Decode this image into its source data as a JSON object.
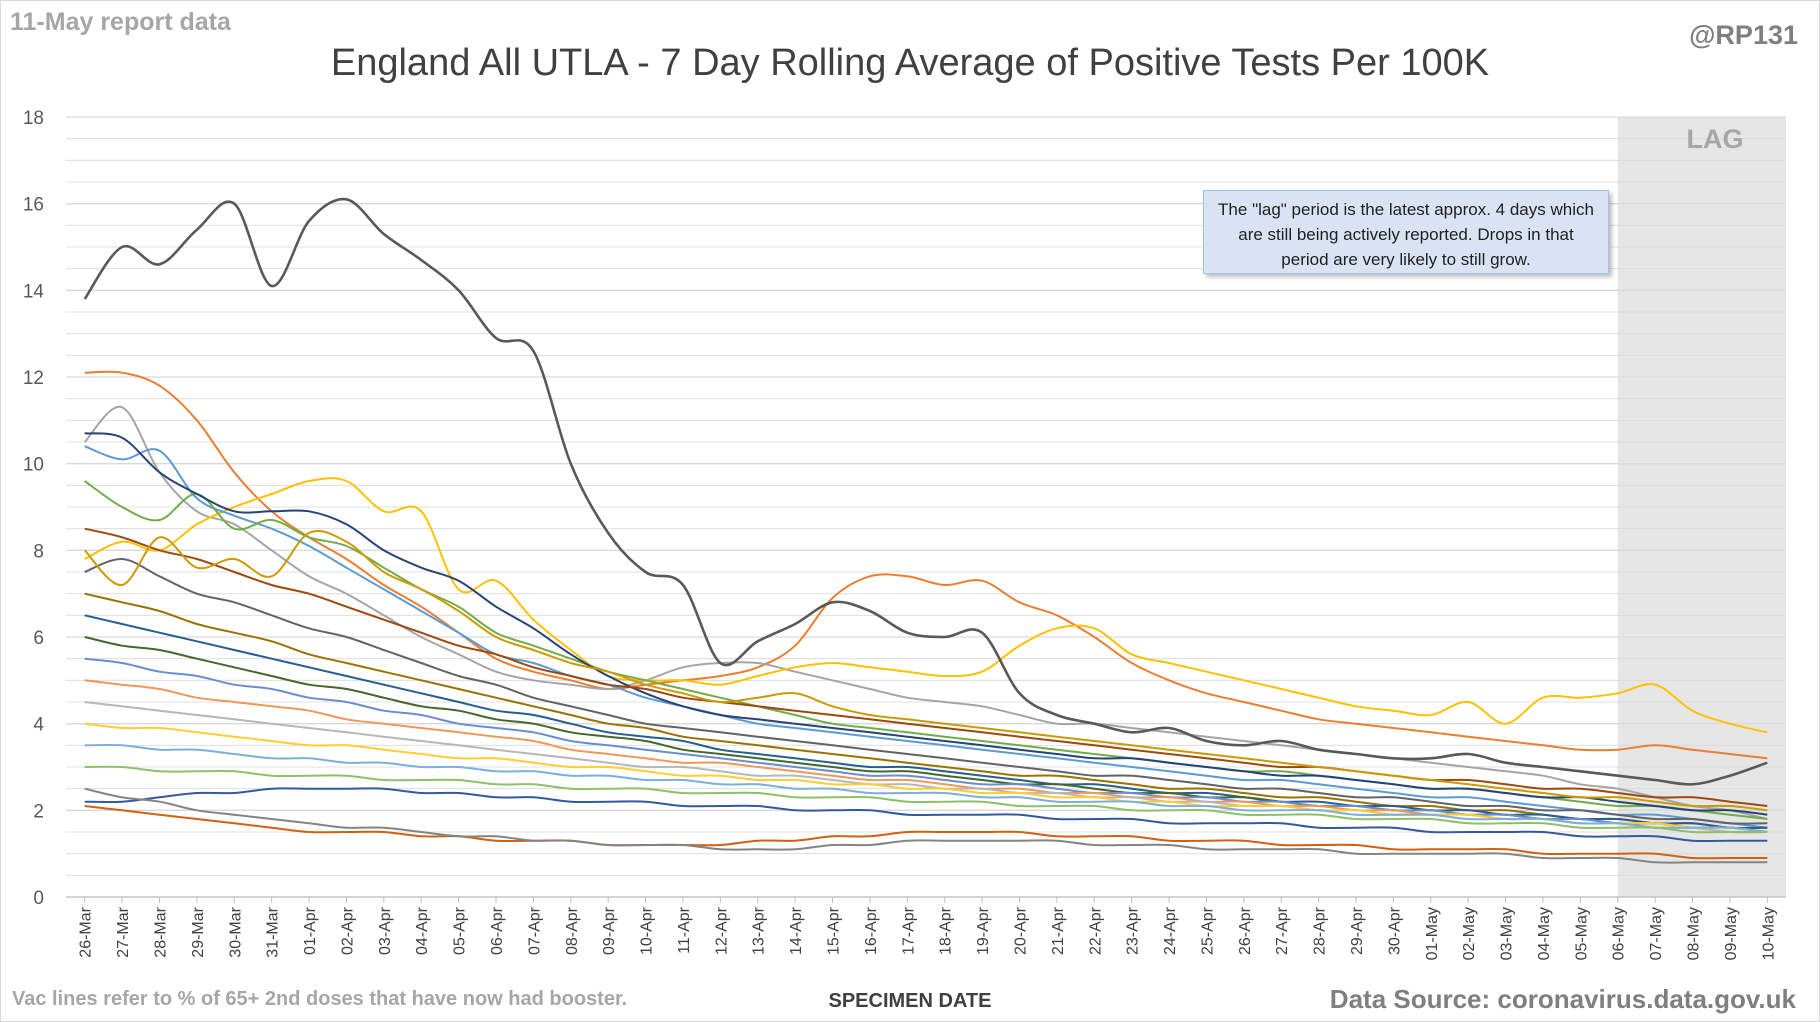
{
  "header": {
    "report_date": "11-May report data",
    "handle": "@RP131"
  },
  "footer": {
    "footnote": "Vac lines refer to % of 65+ 2nd doses that have now had booster.",
    "source": "Data Source: coronavirus.data.gov.uk"
  },
  "note": "The \"lag\" period is the latest approx. 4 days which are still being actively reported. Drops in that period are very likely to still grow.",
  "lag_label": "LAG",
  "colors": {
    "grid": "#d9d9d9",
    "lag_shade": "#e7e6e6",
    "palette": [
      "#4472c4",
      "#ed7d31",
      "#a5a5a5",
      "#ffc000",
      "#5b9bd5",
      "#70ad47",
      "#264478",
      "#9e480e",
      "#636363",
      "#997300",
      "#255e91",
      "#43682b",
      "#698ed0",
      "#f1975a",
      "#b7b7b7",
      "#ffcd33",
      "#7cafdd",
      "#8cc168",
      "#335aa1",
      "#d26012",
      "#848484",
      "#cc9a00"
    ]
  },
  "chart_data": {
    "type": "line",
    "title": "England All UTLA - 7 Day Rolling Average of Positive Tests Per 100K",
    "xlabel": "SPECIMEN DATE",
    "ylabel": "",
    "ylim": [
      0,
      18
    ],
    "yticks": [
      0,
      2,
      4,
      6,
      8,
      10,
      12,
      14,
      16,
      18
    ],
    "grid": true,
    "lag_period": [
      "07-May",
      "10-May"
    ],
    "categories": [
      "26-Mar",
      "27-Mar",
      "28-Mar",
      "29-Mar",
      "30-Mar",
      "31-Mar",
      "01-Apr",
      "02-Apr",
      "03-Apr",
      "04-Apr",
      "05-Apr",
      "06-Apr",
      "07-Apr",
      "08-Apr",
      "09-Apr",
      "10-Apr",
      "11-Apr",
      "12-Apr",
      "13-Apr",
      "14-Apr",
      "15-Apr",
      "16-Apr",
      "17-Apr",
      "18-Apr",
      "19-Apr",
      "20-Apr",
      "21-Apr",
      "22-Apr",
      "23-Apr",
      "24-Apr",
      "25-Apr",
      "26-Apr",
      "27-Apr",
      "28-Apr",
      "29-Apr",
      "30-Apr",
      "01-May",
      "02-May",
      "03-May",
      "04-May",
      "05-May",
      "06-May",
      "07-May",
      "08-May",
      "09-May",
      "10-May"
    ],
    "series": [
      {
        "values": [
          13.8,
          15.0,
          14.6,
          15.4,
          16.0,
          14.1,
          15.6,
          16.1,
          15.3,
          14.7,
          14.0,
          12.9,
          12.6,
          10.0,
          8.4,
          7.5,
          7.2,
          5.4,
          5.9,
          6.3,
          6.8,
          6.6,
          6.1,
          6.0,
          6.1,
          4.7,
          4.2,
          4.0,
          3.8,
          3.9,
          3.6,
          3.5,
          3.6,
          3.4,
          3.3,
          3.2,
          3.2,
          3.3,
          3.1,
          3.0,
          2.9,
          2.8,
          2.7,
          2.6,
          2.8,
          3.1
        ]
      },
      {
        "values": [
          12.1,
          12.1,
          11.8,
          11.0,
          9.8,
          8.9,
          8.3,
          7.8,
          7.2,
          6.7,
          6.1,
          5.5,
          5.2,
          5.0,
          4.8,
          4.9,
          5.0,
          5.1,
          5.3,
          5.8,
          6.9,
          7.4,
          7.4,
          7.2,
          7.3,
          6.8,
          6.5,
          6.0,
          5.4,
          5.0,
          4.7,
          4.5,
          4.3,
          4.1,
          4.0,
          3.9,
          3.8,
          3.7,
          3.6,
          3.5,
          3.4,
          3.4,
          3.5,
          3.4,
          3.3,
          3.2
        ]
      },
      {
        "values": [
          10.5,
          11.3,
          9.8,
          8.9,
          8.6,
          8.0,
          7.4,
          7.0,
          6.5,
          6.0,
          5.6,
          5.2,
          5.0,
          4.9,
          4.8,
          5.0,
          5.3,
          5.4,
          5.4,
          5.2,
          5.0,
          4.8,
          4.6,
          4.5,
          4.4,
          4.2,
          4.0,
          4.0,
          3.9,
          3.8,
          3.7,
          3.6,
          3.5,
          3.4,
          3.3,
          3.2,
          3.1,
          3.0,
          2.9,
          2.8,
          2.6,
          2.5,
          2.3,
          2.1,
          2.0,
          1.8
        ]
      },
      {
        "values": [
          7.8,
          8.2,
          8.0,
          8.6,
          9.0,
          9.3,
          9.6,
          9.6,
          8.9,
          8.9,
          7.1,
          7.3,
          6.4,
          5.7,
          5.1,
          5.0,
          5.0,
          4.9,
          5.1,
          5.3,
          5.4,
          5.3,
          5.2,
          5.1,
          5.2,
          5.8,
          6.2,
          6.2,
          5.6,
          5.4,
          5.2,
          5.0,
          4.8,
          4.6,
          4.4,
          4.3,
          4.2,
          4.5,
          4.0,
          4.6,
          4.6,
          4.7,
          4.9,
          4.3,
          4.0,
          3.8
        ]
      },
      {
        "values": [
          10.4,
          10.1,
          10.3,
          9.2,
          8.8,
          8.5,
          8.1,
          7.6,
          7.1,
          6.6,
          6.1,
          5.6,
          5.4,
          5.1,
          4.9,
          4.6,
          4.4,
          4.2,
          4.0,
          3.9,
          3.8,
          3.7,
          3.6,
          3.5,
          3.4,
          3.3,
          3.2,
          3.1,
          3.0,
          2.9,
          2.8,
          2.7,
          2.7,
          2.6,
          2.5,
          2.4,
          2.3,
          2.3,
          2.2,
          2.1,
          2.0,
          1.9,
          1.9,
          1.8,
          1.7,
          1.6
        ]
      },
      {
        "values": [
          9.6,
          9.0,
          8.7,
          9.3,
          8.5,
          8.7,
          8.3,
          8.1,
          7.6,
          7.1,
          6.7,
          6.1,
          5.8,
          5.5,
          5.2,
          5.0,
          4.8,
          4.6,
          4.4,
          4.2,
          4.0,
          3.9,
          3.8,
          3.7,
          3.6,
          3.5,
          3.4,
          3.3,
          3.2,
          3.1,
          3.0,
          2.9,
          2.9,
          2.8,
          2.7,
          2.6,
          2.5,
          2.5,
          2.4,
          2.3,
          2.2,
          2.1,
          2.1,
          2.0,
          1.9,
          1.8
        ]
      },
      {
        "values": [
          10.7,
          10.6,
          9.8,
          9.3,
          8.9,
          8.9,
          8.9,
          8.6,
          8.0,
          7.6,
          7.3,
          6.7,
          6.2,
          5.6,
          5.1,
          4.7,
          4.4,
          4.2,
          4.1,
          4.0,
          3.9,
          3.8,
          3.7,
          3.6,
          3.5,
          3.4,
          3.3,
          3.2,
          3.2,
          3.1,
          3.0,
          2.9,
          2.8,
          2.8,
          2.7,
          2.6,
          2.5,
          2.5,
          2.4,
          2.3,
          2.3,
          2.2,
          2.1,
          2.0,
          2.0,
          1.9
        ]
      },
      {
        "values": [
          8.5,
          8.3,
          8.0,
          7.8,
          7.5,
          7.2,
          7.0,
          6.7,
          6.4,
          6.1,
          5.8,
          5.6,
          5.3,
          5.1,
          4.9,
          4.8,
          4.6,
          4.5,
          4.4,
          4.3,
          4.2,
          4.1,
          4.0,
          3.9,
          3.8,
          3.7,
          3.6,
          3.5,
          3.4,
          3.3,
          3.2,
          3.1,
          3.0,
          3.0,
          2.9,
          2.8,
          2.7,
          2.7,
          2.6,
          2.5,
          2.5,
          2.4,
          2.3,
          2.3,
          2.2,
          2.1
        ]
      },
      {
        "values": [
          7.5,
          7.8,
          7.4,
          7.0,
          6.8,
          6.5,
          6.2,
          6.0,
          5.7,
          5.4,
          5.1,
          4.9,
          4.6,
          4.4,
          4.2,
          4.0,
          3.9,
          3.8,
          3.7,
          3.6,
          3.5,
          3.4,
          3.3,
          3.2,
          3.1,
          3.0,
          2.9,
          2.8,
          2.8,
          2.7,
          2.6,
          2.5,
          2.5,
          2.4,
          2.3,
          2.3,
          2.2,
          2.1,
          2.1,
          2.0,
          2.0,
          1.9,
          1.8,
          1.8,
          1.7,
          1.7
        ]
      },
      {
        "values": [
          7.0,
          6.8,
          6.6,
          6.3,
          6.1,
          5.9,
          5.6,
          5.4,
          5.2,
          5.0,
          4.8,
          4.6,
          4.4,
          4.2,
          4.0,
          3.9,
          3.7,
          3.6,
          3.5,
          3.4,
          3.3,
          3.2,
          3.1,
          3.0,
          2.9,
          2.8,
          2.8,
          2.7,
          2.6,
          2.5,
          2.5,
          2.4,
          2.3,
          2.3,
          2.2,
          2.1,
          2.1,
          2.0,
          2.0,
          1.9,
          1.8,
          1.8,
          1.7,
          1.7,
          1.6,
          1.6
        ]
      },
      {
        "values": [
          6.5,
          6.3,
          6.1,
          5.9,
          5.7,
          5.5,
          5.3,
          5.1,
          4.9,
          4.7,
          4.5,
          4.3,
          4.2,
          4.0,
          3.8,
          3.7,
          3.6,
          3.4,
          3.3,
          3.2,
          3.1,
          3.0,
          3.0,
          2.9,
          2.8,
          2.7,
          2.6,
          2.6,
          2.5,
          2.4,
          2.4,
          2.3,
          2.2,
          2.2,
          2.1,
          2.1,
          2.0,
          2.0,
          1.9,
          1.9,
          1.8,
          1.8,
          1.7,
          1.7,
          1.6,
          1.6
        ]
      },
      {
        "values": [
          6.0,
          5.8,
          5.7,
          5.5,
          5.3,
          5.1,
          4.9,
          4.8,
          4.6,
          4.4,
          4.3,
          4.1,
          4.0,
          3.8,
          3.7,
          3.6,
          3.4,
          3.3,
          3.2,
          3.1,
          3.0,
          2.9,
          2.9,
          2.8,
          2.7,
          2.6,
          2.6,
          2.5,
          2.4,
          2.4,
          2.3,
          2.3,
          2.2,
          2.1,
          2.1,
          2.0,
          2.0,
          1.9,
          1.9,
          1.8,
          1.8,
          1.7,
          1.7,
          1.6,
          1.6,
          1.5
        ]
      },
      {
        "values": [
          5.5,
          5.4,
          5.2,
          5.1,
          4.9,
          4.8,
          4.6,
          4.5,
          4.3,
          4.2,
          4.0,
          3.9,
          3.8,
          3.6,
          3.5,
          3.4,
          3.3,
          3.2,
          3.1,
          3.0,
          2.9,
          2.8,
          2.8,
          2.7,
          2.6,
          2.6,
          2.5,
          2.4,
          2.4,
          2.3,
          2.3,
          2.2,
          2.2,
          2.1,
          2.1,
          2.0,
          2.0,
          1.9,
          1.9,
          1.8,
          1.8,
          1.7,
          1.7,
          1.6,
          1.6,
          1.5
        ]
      },
      {
        "values": [
          5.0,
          4.9,
          4.8,
          4.6,
          4.5,
          4.4,
          4.3,
          4.1,
          4.0,
          3.9,
          3.8,
          3.7,
          3.6,
          3.4,
          3.3,
          3.2,
          3.1,
          3.1,
          3.0,
          2.9,
          2.8,
          2.7,
          2.7,
          2.6,
          2.5,
          2.5,
          2.4,
          2.4,
          2.3,
          2.3,
          2.2,
          2.2,
          2.1,
          2.1,
          2.0,
          2.0,
          1.9,
          1.9,
          1.8,
          1.8,
          1.7,
          1.7,
          1.6,
          1.6,
          1.5,
          1.5
        ]
      },
      {
        "values": [
          4.5,
          4.4,
          4.3,
          4.2,
          4.1,
          4.0,
          3.9,
          3.8,
          3.7,
          3.6,
          3.5,
          3.4,
          3.3,
          3.2,
          3.1,
          3.0,
          3.0,
          2.9,
          2.8,
          2.8,
          2.7,
          2.6,
          2.6,
          2.5,
          2.5,
          2.4,
          2.4,
          2.3,
          2.3,
          2.2,
          2.2,
          2.1,
          2.1,
          2.0,
          2.0,
          1.9,
          1.9,
          1.9,
          1.8,
          1.8,
          1.7,
          1.7,
          1.6,
          1.6,
          1.5,
          1.5
        ]
      },
      {
        "values": [
          4.0,
          3.9,
          3.9,
          3.8,
          3.7,
          3.6,
          3.5,
          3.5,
          3.4,
          3.3,
          3.2,
          3.2,
          3.1,
          3.0,
          3.0,
          2.9,
          2.8,
          2.8,
          2.7,
          2.7,
          2.6,
          2.6,
          2.5,
          2.5,
          2.4,
          2.4,
          2.3,
          2.3,
          2.2,
          2.2,
          2.1,
          2.1,
          2.1,
          2.0,
          2.0,
          1.9,
          1.9,
          1.9,
          1.8,
          1.8,
          1.7,
          1.7,
          1.7,
          1.6,
          1.6,
          1.5
        ]
      },
      {
        "values": [
          3.5,
          3.5,
          3.4,
          3.4,
          3.3,
          3.2,
          3.2,
          3.1,
          3.1,
          3.0,
          3.0,
          2.9,
          2.9,
          2.8,
          2.8,
          2.7,
          2.7,
          2.6,
          2.6,
          2.5,
          2.5,
          2.4,
          2.4,
          2.4,
          2.3,
          2.3,
          2.2,
          2.2,
          2.2,
          2.1,
          2.1,
          2.0,
          2.0,
          2.0,
          1.9,
          1.9,
          1.9,
          1.8,
          1.8,
          1.8,
          1.7,
          1.7,
          1.6,
          1.6,
          1.6,
          1.5
        ]
      },
      {
        "values": [
          3.0,
          3.0,
          2.9,
          2.9,
          2.9,
          2.8,
          2.8,
          2.8,
          2.7,
          2.7,
          2.7,
          2.6,
          2.6,
          2.5,
          2.5,
          2.5,
          2.4,
          2.4,
          2.4,
          2.3,
          2.3,
          2.3,
          2.2,
          2.2,
          2.2,
          2.1,
          2.1,
          2.1,
          2.0,
          2.0,
          2.0,
          1.9,
          1.9,
          1.9,
          1.8,
          1.8,
          1.8,
          1.7,
          1.7,
          1.7,
          1.6,
          1.6,
          1.6,
          1.5,
          1.5,
          1.5
        ]
      },
      {
        "values": [
          2.2,
          2.2,
          2.3,
          2.4,
          2.4,
          2.5,
          2.5,
          2.5,
          2.5,
          2.4,
          2.4,
          2.3,
          2.3,
          2.2,
          2.2,
          2.2,
          2.1,
          2.1,
          2.1,
          2.0,
          2.0,
          2.0,
          1.9,
          1.9,
          1.9,
          1.9,
          1.8,
          1.8,
          1.8,
          1.7,
          1.7,
          1.7,
          1.7,
          1.6,
          1.6,
          1.6,
          1.5,
          1.5,
          1.5,
          1.5,
          1.4,
          1.4,
          1.4,
          1.3,
          1.3,
          1.3
        ]
      },
      {
        "values": [
          2.1,
          2.0,
          1.9,
          1.8,
          1.7,
          1.6,
          1.5,
          1.5,
          1.5,
          1.4,
          1.4,
          1.3,
          1.3,
          1.3,
          1.2,
          1.2,
          1.2,
          1.2,
          1.3,
          1.3,
          1.4,
          1.4,
          1.5,
          1.5,
          1.5,
          1.5,
          1.4,
          1.4,
          1.4,
          1.3,
          1.3,
          1.3,
          1.2,
          1.2,
          1.2,
          1.1,
          1.1,
          1.1,
          1.1,
          1.0,
          1.0,
          1.0,
          1.0,
          0.9,
          0.9,
          0.9
        ]
      },
      {
        "values": [
          2.5,
          2.3,
          2.2,
          2.0,
          1.9,
          1.8,
          1.7,
          1.6,
          1.6,
          1.5,
          1.4,
          1.4,
          1.3,
          1.3,
          1.2,
          1.2,
          1.2,
          1.1,
          1.1,
          1.1,
          1.2,
          1.2,
          1.3,
          1.3,
          1.3,
          1.3,
          1.3,
          1.2,
          1.2,
          1.2,
          1.1,
          1.1,
          1.1,
          1.1,
          1.0,
          1.0,
          1.0,
          1.0,
          1.0,
          0.9,
          0.9,
          0.9,
          0.8,
          0.8,
          0.8,
          0.8
        ]
      },
      {
        "values": [
          8.0,
          7.2,
          8.3,
          7.6,
          7.8,
          7.4,
          8.4,
          8.2,
          7.5,
          7.1,
          6.6,
          6.0,
          5.7,
          5.4,
          5.2,
          4.9,
          4.7,
          4.5,
          4.6,
          4.7,
          4.4,
          4.2,
          4.1,
          4.0,
          3.9,
          3.8,
          3.7,
          3.6,
          3.5,
          3.4,
          3.3,
          3.2,
          3.1,
          3.0,
          2.9,
          2.8,
          2.7,
          2.6,
          2.5,
          2.4,
          2.3,
          2.3,
          2.2,
          2.1,
          2.1,
          2.0
        ]
      }
    ]
  }
}
